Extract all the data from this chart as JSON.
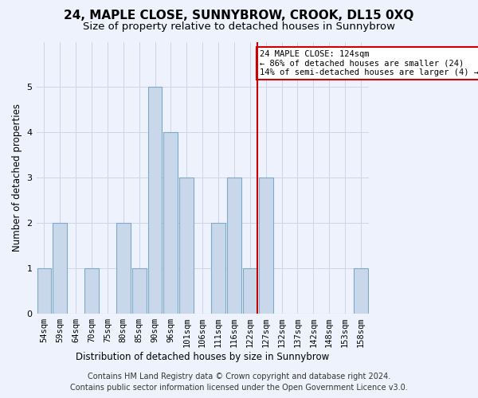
{
  "title": "24, MAPLE CLOSE, SUNNYBROW, CROOK, DL15 0XQ",
  "subtitle": "Size of property relative to detached houses in Sunnybrow",
  "xlabel": "Distribution of detached houses by size in Sunnybrow",
  "ylabel": "Number of detached properties",
  "categories": [
    "54sqm",
    "59sqm",
    "64sqm",
    "70sqm",
    "75sqm",
    "80sqm",
    "85sqm",
    "90sqm",
    "96sqm",
    "101sqm",
    "106sqm",
    "111sqm",
    "116sqm",
    "122sqm",
    "127sqm",
    "132sqm",
    "137sqm",
    "142sqm",
    "148sqm",
    "153sqm",
    "158sqm"
  ],
  "values": [
    1,
    2,
    0,
    1,
    0,
    2,
    1,
    5,
    4,
    3,
    0,
    2,
    3,
    1,
    3,
    0,
    0,
    0,
    0,
    0,
    1
  ],
  "bar_color": "#c8d8ea",
  "bar_edge_color": "#7aaac8",
  "highlight_line_index": 13,
  "highlight_line_color": "#cc0000",
  "annotation_text": "24 MAPLE CLOSE: 124sqm\n← 86% of detached houses are smaller (24)\n14% of semi-detached houses are larger (4) →",
  "annotation_box_color": "#cc0000",
  "ylim": [
    0,
    6
  ],
  "yticks": [
    0,
    1,
    2,
    3,
    4,
    5,
    6
  ],
  "footer_line1": "Contains HM Land Registry data © Crown copyright and database right 2024.",
  "footer_line2": "Contains public sector information licensed under the Open Government Licence v3.0.",
  "background_color": "#eef2fc",
  "grid_color": "#d0d4e8",
  "title_fontsize": 11,
  "subtitle_fontsize": 9.5,
  "axis_label_fontsize": 8.5,
  "tick_fontsize": 7.5,
  "footer_fontsize": 7
}
